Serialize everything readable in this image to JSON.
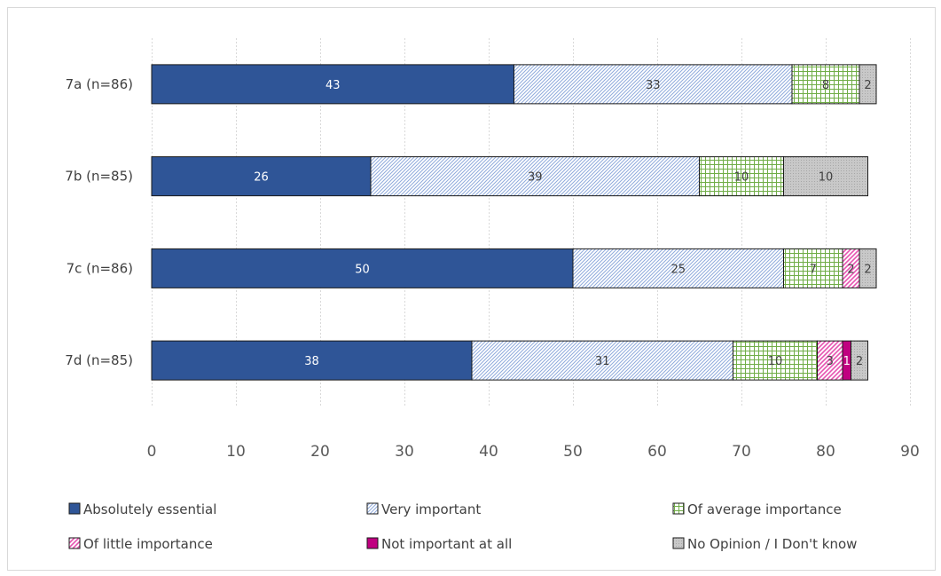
{
  "chart_data": {
    "type": "bar",
    "orientation": "horizontal",
    "stacked": true,
    "categories": [
      "7a (n=86)",
      "7b (n=85)",
      "7c (n=86)",
      "7d (n=85)"
    ],
    "series": [
      {
        "name": "Absolutely essential",
        "values": [
          43,
          26,
          50,
          38
        ],
        "color": "#2F5597",
        "pattern": "solid"
      },
      {
        "name": "Very important",
        "values": [
          33,
          39,
          25,
          31
        ],
        "color": "#8FAADC",
        "pattern": "diagonal"
      },
      {
        "name": "Of average importance",
        "values": [
          8,
          10,
          7,
          10
        ],
        "color": "#70AD47",
        "pattern": "grid"
      },
      {
        "name": "Of little importance",
        "values": [
          0,
          0,
          2,
          3
        ],
        "color": "#E652B0",
        "pattern": "diagonal-wide"
      },
      {
        "name": "Not important at all",
        "values": [
          0,
          0,
          0,
          1
        ],
        "color": "#C00080",
        "pattern": "solid"
      },
      {
        "name": "No Opinion / I Don't know",
        "values": [
          2,
          10,
          2,
          2
        ],
        "color": "#BFBFBF",
        "pattern": "dots"
      }
    ],
    "xlim": [
      0,
      90
    ],
    "xticks": [
      0,
      10,
      20,
      30,
      40,
      50,
      60,
      70,
      80,
      90
    ],
    "grid": "vertical",
    "legend": "bottom",
    "title": "",
    "xlabel": "",
    "ylabel": ""
  }
}
